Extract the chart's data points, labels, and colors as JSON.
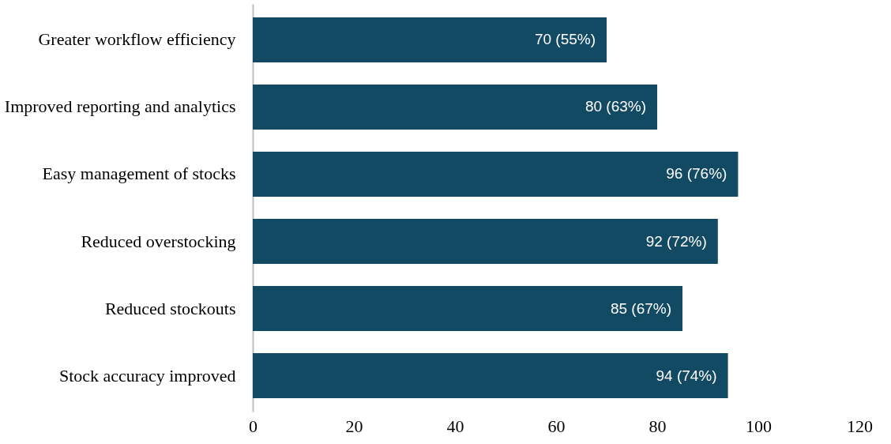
{
  "chart_data": {
    "type": "bar",
    "orientation": "horizontal",
    "categories": [
      "Greater workflow efficiency",
      "Improved reporting and analytics",
      "Easy management of stocks",
      "Reduced overstocking",
      "Reduced stockouts",
      "Stock accuracy improved"
    ],
    "values": [
      70,
      80,
      96,
      92,
      85,
      94
    ],
    "value_labels": [
      "70 (55%)",
      "80 (63%)",
      "96 (76%)",
      "92 (72%)",
      "85 (67%)",
      "94 (74%)"
    ],
    "color": "#134a63",
    "xlim": [
      0,
      120
    ],
    "xticks": [
      0,
      20,
      40,
      60,
      80,
      100,
      120
    ],
    "grid": false
  }
}
